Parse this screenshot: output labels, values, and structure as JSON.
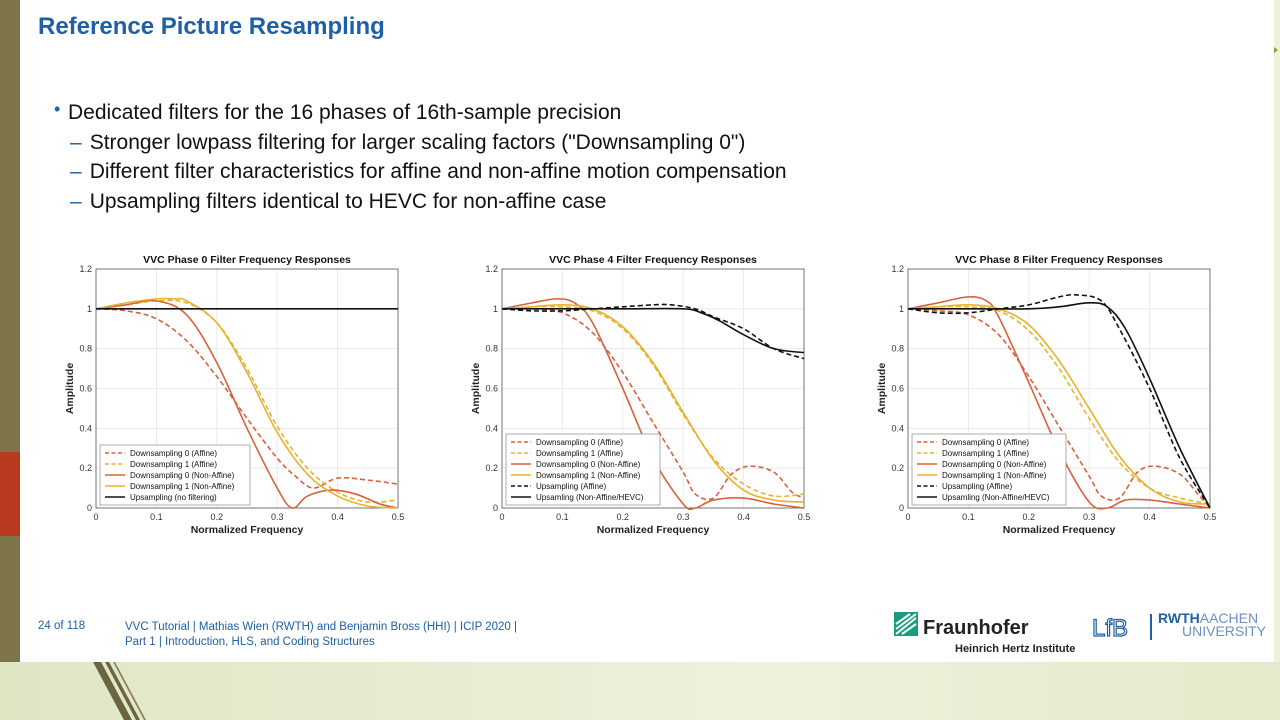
{
  "slide": {
    "title": "Reference Picture Resampling",
    "bullets": {
      "main": "Dedicated filters for the 16 phases of 16th-sample precision",
      "sub": [
        "Stronger lowpass filtering for larger scaling factors (\"Downsampling 0\")",
        "Different filter characteristics for affine and non-affine motion compensation",
        "Upsampling filters identical to HEVC for non-affine case"
      ]
    }
  },
  "footer": {
    "page": "24 of 118",
    "line1": "VVC Tutorial  |  Mathias Wien (RWTH) and Benjamin Bross (HHI)  |  ICIP 2020  |",
    "line2": "Part 1  |  Introduction, HLS, and Coding Structures"
  },
  "logos": {
    "fraunhofer": "Fraunhofer",
    "fraunhofer_sub": "Heinrich Hertz Institute",
    "lfb": "LfB",
    "rwth_1": "RWTH",
    "rwth_1b": "AACHEN",
    "rwth_2": "UNIVERSITY"
  },
  "colors": {
    "title": "#1f5fa6",
    "ds0": "#d9603b",
    "ds1": "#e8b22e",
    "up": "#111111"
  },
  "chart_data": [
    {
      "type": "line",
      "title": "VVC Phase 0 Filter Frequency Responses",
      "xlabel": "Normalized Frequency",
      "ylabel": "Amplitude",
      "xlim": [
        0,
        0.5
      ],
      "ylim": [
        0,
        1.2
      ],
      "xticks": [
        "0",
        "0.1",
        "0.2",
        "0.3",
        "0.4",
        "0.5"
      ],
      "yticks": [
        "0",
        "0.2",
        "0.4",
        "0.6",
        "0.8",
        "1",
        "1.2"
      ],
      "legend_position": "bottom-left",
      "series": [
        {
          "name": "Downsampling 0 (Affine)",
          "style": "dashed",
          "color": "#d9603b",
          "x": [
            0,
            0.05,
            0.1,
            0.15,
            0.2,
            0.25,
            0.3,
            0.33,
            0.36,
            0.4,
            0.45,
            0.5
          ],
          "y": [
            1,
            0.99,
            0.95,
            0.84,
            0.66,
            0.45,
            0.25,
            0.16,
            0.1,
            0.15,
            0.14,
            0.12
          ]
        },
        {
          "name": "Downsampling 1 (Affine)",
          "style": "dashed",
          "color": "#e8b22e",
          "x": [
            0,
            0.05,
            0.1,
            0.15,
            0.2,
            0.25,
            0.3,
            0.35,
            0.4,
            0.45,
            0.5
          ],
          "y": [
            1,
            1.02,
            1.04,
            1.03,
            0.93,
            0.7,
            0.41,
            0.2,
            0.08,
            0.03,
            0.04
          ]
        },
        {
          "name": "Downsampling 0 (Non-Affine)",
          "style": "solid",
          "color": "#d9603b",
          "x": [
            0,
            0.05,
            0.1,
            0.15,
            0.2,
            0.25,
            0.3,
            0.325,
            0.35,
            0.39,
            0.43,
            0.47,
            0.5
          ],
          "y": [
            1,
            1.02,
            1.04,
            0.97,
            0.73,
            0.4,
            0.1,
            0,
            0.06,
            0.09,
            0.07,
            0.02,
            0
          ]
        },
        {
          "name": "Downsampling 1 (Non-Affine)",
          "style": "solid",
          "color": "#e8b22e",
          "x": [
            0,
            0.05,
            0.1,
            0.13,
            0.15,
            0.2,
            0.25,
            0.3,
            0.35,
            0.4,
            0.45,
            0.5
          ],
          "y": [
            1,
            1.03,
            1.05,
            1.05,
            1.04,
            0.93,
            0.68,
            0.38,
            0.17,
            0.06,
            0.01,
            0
          ]
        },
        {
          "name": "Upsampling (no filtering)",
          "style": "solid",
          "color": "#111111",
          "x": [
            0,
            0.5
          ],
          "y": [
            1,
            1
          ]
        }
      ]
    },
    {
      "type": "line",
      "title": "VVC Phase 4 Filter Frequency Responses",
      "xlabel": "Normalized Frequency",
      "ylabel": "Amplitude",
      "xlim": [
        0,
        0.5
      ],
      "ylim": [
        0,
        1.2
      ],
      "xticks": [
        "0",
        "0.1",
        "0.2",
        "0.3",
        "0.4",
        "0.5"
      ],
      "yticks": [
        "0",
        "0.2",
        "0.4",
        "0.6",
        "0.8",
        "1",
        "1.2"
      ],
      "legend_position": "bottom-left",
      "series": [
        {
          "name": "Downsampling 0 (Affine)",
          "style": "dashed",
          "color": "#d9603b",
          "x": [
            0,
            0.05,
            0.1,
            0.15,
            0.2,
            0.25,
            0.3,
            0.32,
            0.35,
            0.38,
            0.41,
            0.45,
            0.48,
            0.5
          ],
          "y": [
            1,
            1.0,
            0.98,
            0.88,
            0.68,
            0.43,
            0.18,
            0.07,
            0.05,
            0.17,
            0.21,
            0.18,
            0.08,
            0.05
          ]
        },
        {
          "name": "Downsampling 1 (Affine)",
          "style": "dashed",
          "color": "#e8b22e",
          "x": [
            0,
            0.05,
            0.1,
            0.15,
            0.2,
            0.25,
            0.3,
            0.35,
            0.4,
            0.45,
            0.5
          ],
          "y": [
            1,
            1.01,
            1.01,
            0.99,
            0.9,
            0.72,
            0.47,
            0.25,
            0.12,
            0.06,
            0.07
          ]
        },
        {
          "name": "Downsampling 0 (Non-Affine)",
          "style": "solid",
          "color": "#d9603b",
          "x": [
            0,
            0.05,
            0.09,
            0.12,
            0.15,
            0.2,
            0.25,
            0.3,
            0.32,
            0.35,
            0.4,
            0.45,
            0.5
          ],
          "y": [
            1,
            1.03,
            1.05,
            1.03,
            0.93,
            0.6,
            0.25,
            0.02,
            0,
            0.04,
            0.05,
            0.02,
            0
          ]
        },
        {
          "name": "Downsampling 1 (Non-Affine)",
          "style": "solid",
          "color": "#e8b22e",
          "x": [
            0,
            0.05,
            0.1,
            0.15,
            0.2,
            0.25,
            0.3,
            0.35,
            0.4,
            0.45,
            0.5
          ],
          "y": [
            1,
            1.01,
            1.02,
            1.0,
            0.91,
            0.73,
            0.48,
            0.24,
            0.09,
            0.04,
            0.03
          ]
        },
        {
          "name": "Upsampling (Affine)",
          "style": "dashed",
          "color": "#111111",
          "x": [
            0,
            0.05,
            0.1,
            0.15,
            0.2,
            0.25,
            0.28,
            0.32,
            0.35,
            0.4,
            0.45,
            0.5
          ],
          "y": [
            1,
            0.99,
            0.99,
            1.0,
            1.01,
            1.02,
            1.02,
            1.0,
            0.96,
            0.9,
            0.8,
            0.75
          ]
        },
        {
          "name": "Upsamling (Non-Affine/HEVC)",
          "style": "solid",
          "color": "#111111",
          "x": [
            0,
            0.1,
            0.2,
            0.3,
            0.33,
            0.36,
            0.4,
            0.45,
            0.5
          ],
          "y": [
            1,
            1.0,
            1.0,
            1.0,
            0.98,
            0.94,
            0.87,
            0.8,
            0.78
          ]
        }
      ]
    },
    {
      "type": "line",
      "title": "VVC Phase 8 Filter Frequency Responses",
      "xlabel": "Normalized Frequency",
      "ylabel": "Amplitude",
      "xlim": [
        0,
        0.5
      ],
      "ylim": [
        0,
        1.2
      ],
      "xticks": [
        "0",
        "0.1",
        "0.2",
        "0.3",
        "0.4",
        "0.5"
      ],
      "yticks": [
        "0",
        "0.2",
        "0.4",
        "0.6",
        "0.8",
        "1",
        "1.2"
      ],
      "legend_position": "bottom-left",
      "series": [
        {
          "name": "Downsampling 0 (Affine)",
          "style": "dashed",
          "color": "#d9603b",
          "x": [
            0,
            0.05,
            0.1,
            0.15,
            0.2,
            0.25,
            0.3,
            0.32,
            0.35,
            0.38,
            0.41,
            0.45,
            0.48,
            0.5
          ],
          "y": [
            1,
            0.99,
            0.97,
            0.87,
            0.66,
            0.41,
            0.16,
            0.06,
            0.05,
            0.18,
            0.21,
            0.17,
            0.07,
            0
          ]
        },
        {
          "name": "Downsampling 1 (Affine)",
          "style": "dashed",
          "color": "#e8b22e",
          "x": [
            0,
            0.05,
            0.1,
            0.15,
            0.2,
            0.25,
            0.3,
            0.35,
            0.4,
            0.45,
            0.5
          ],
          "y": [
            1,
            1.01,
            1.01,
            0.99,
            0.89,
            0.7,
            0.45,
            0.23,
            0.1,
            0.05,
            0.02
          ]
        },
        {
          "name": "Downsampling 0 (Non-Affine)",
          "style": "solid",
          "color": "#d9603b",
          "x": [
            0,
            0.05,
            0.1,
            0.13,
            0.15,
            0.2,
            0.25,
            0.3,
            0.33,
            0.36,
            0.4,
            0.45,
            0.5
          ],
          "y": [
            1,
            1.03,
            1.06,
            1.04,
            0.96,
            0.63,
            0.29,
            0.03,
            0,
            0.04,
            0.04,
            0.02,
            0
          ]
        },
        {
          "name": "Downsampling 1 (Non-Affine)",
          "style": "solid",
          "color": "#e8b22e",
          "x": [
            0,
            0.05,
            0.1,
            0.15,
            0.2,
            0.25,
            0.3,
            0.35,
            0.4,
            0.45,
            0.5
          ],
          "y": [
            1,
            1.01,
            1.02,
            1.0,
            0.92,
            0.74,
            0.5,
            0.26,
            0.1,
            0.03,
            0.02
          ]
        },
        {
          "name": "Upsampling (Affine)",
          "style": "dashed",
          "color": "#111111",
          "x": [
            0,
            0.05,
            0.1,
            0.15,
            0.2,
            0.25,
            0.28,
            0.32,
            0.35,
            0.4,
            0.45,
            0.5
          ],
          "y": [
            1,
            0.98,
            0.98,
            1.0,
            1.02,
            1.06,
            1.07,
            1.04,
            0.9,
            0.6,
            0.25,
            0
          ]
        },
        {
          "name": "Upsamling (Non-Affine/HEVC)",
          "style": "solid",
          "color": "#111111",
          "x": [
            0,
            0.1,
            0.2,
            0.25,
            0.3,
            0.33,
            0.36,
            0.4,
            0.45,
            0.5
          ],
          "y": [
            1,
            1.0,
            1.0,
            1.01,
            1.03,
            1.01,
            0.9,
            0.65,
            0.3,
            0
          ]
        }
      ]
    }
  ]
}
